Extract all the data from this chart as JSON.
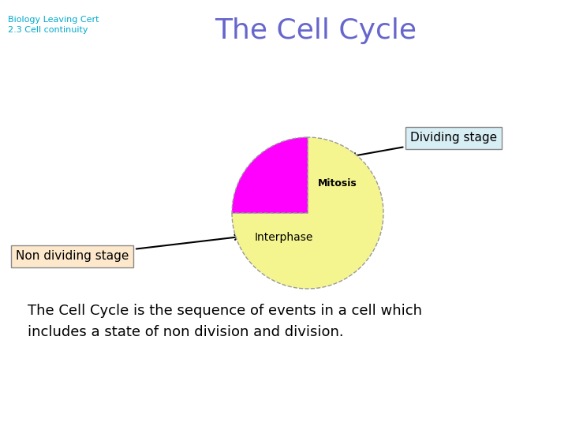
{
  "title": "The Cell Cycle",
  "subtitle_line1": "Biology Leaving Cert",
  "subtitle_line2": "2.3 Cell continuity",
  "pie_values": [
    75,
    25
  ],
  "pie_colors": [
    "#f5f590",
    "#ff00ff"
  ],
  "pie_edge_color": "#999999",
  "interphase_label": "Interphase",
  "mitosis_label": "Mitosis",
  "dividing_box_text": "Dividing stage",
  "non_dividing_box_text": "Non dividing stage",
  "body_text_line1": "The Cell Cycle is the sequence of events in a cell which",
  "body_text_line2": "includes a state of non division and division.",
  "title_color": "#6666cc",
  "subtitle_color": "#00aacc",
  "body_text_color": "#000000",
  "background_color": "#ffffff"
}
